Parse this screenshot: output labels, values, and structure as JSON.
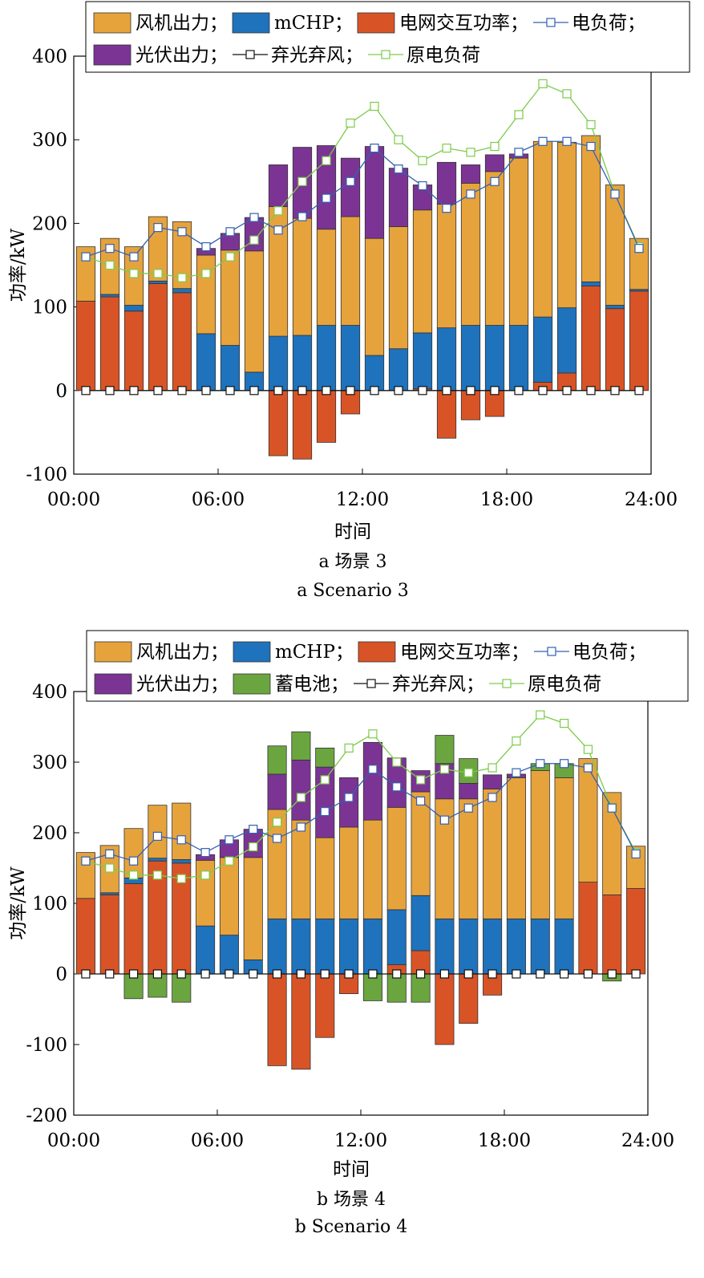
{
  "colors": {
    "wind": "#E6A33C",
    "mchp": "#1F72BC",
    "grid": "#D85426",
    "pv": "#7B3494",
    "battery": "#6BA540",
    "load": "#3460B0",
    "curtail": "#111111",
    "orig_load": "#7CCB4A"
  },
  "chart_data": [
    {
      "type": "bar",
      "stacked": true,
      "panel": "a",
      "xlabel": "时间",
      "ylabel": "功率/kW",
      "ylim": [
        -100,
        400
      ],
      "yticks": [
        -100,
        0,
        100,
        200,
        300,
        400
      ],
      "xlim": [
        0,
        24
      ],
      "xticks": [
        "00:00",
        "06:00",
        "12:00",
        "18:00",
        "24:00"
      ],
      "caption_cn": "a  场景 3",
      "caption_en": "a  Scenario 3",
      "legend_rows": [
        [
          "风机出力；",
          "mCHP；",
          "电网交互功率；",
          "电负荷；"
        ],
        [
          "光伏出力；",
          "弃光弃风；",
          "原电负荷"
        ]
      ],
      "x": [
        0.5,
        1.5,
        2.5,
        3.5,
        4.5,
        5.5,
        6.5,
        7.5,
        8.5,
        9.5,
        10.5,
        11.5,
        12.5,
        13.5,
        14.5,
        15.5,
        16.5,
        17.5,
        18.5,
        19.5,
        20.5,
        21.5,
        22.5,
        23.5
      ],
      "series": [
        {
          "name": "电网交互功率",
          "key": "grid",
          "kind": "bar",
          "values": [
            107,
            112,
            95,
            128,
            117,
            0,
            0,
            0,
            -78,
            -82,
            -62,
            -28,
            0,
            0,
            2,
            -57,
            -35,
            -31,
            0,
            10,
            21,
            125,
            98,
            119
          ]
        },
        {
          "name": "mCHP",
          "key": "mchp",
          "kind": "bar",
          "values": [
            0,
            3,
            7,
            3,
            5,
            68,
            54,
            22,
            65,
            66,
            78,
            78,
            42,
            50,
            67,
            75,
            78,
            78,
            78,
            78,
            78,
            5,
            4,
            2
          ]
        },
        {
          "name": "风机出力",
          "key": "wind",
          "kind": "bar",
          "values": [
            65,
            67,
            70,
            77,
            80,
            94,
            114,
            145,
            155,
            140,
            115,
            130,
            140,
            146,
            147,
            148,
            170,
            184,
            200,
            210,
            198,
            175,
            144,
            61
          ]
        },
        {
          "name": "光伏出力",
          "key": "pv",
          "kind": "bar",
          "values": [
            0,
            0,
            0,
            0,
            0,
            8,
            20,
            40,
            50,
            85,
            100,
            70,
            110,
            70,
            30,
            50,
            22,
            20,
            5,
            0,
            0,
            0,
            0,
            0
          ]
        },
        {
          "name": "电负荷",
          "key": "load",
          "kind": "line",
          "values": [
            160,
            170,
            160,
            195,
            190,
            172,
            190,
            207,
            192,
            208,
            230,
            250,
            290,
            265,
            245,
            218,
            235,
            250,
            285,
            298,
            298,
            292,
            235,
            170
          ]
        },
        {
          "name": "弃光弃风",
          "key": "curtail",
          "kind": "line",
          "values": [
            0,
            0,
            0,
            0,
            0,
            0,
            0,
            0,
            0,
            0,
            0,
            0,
            0,
            0,
            0,
            0,
            0,
            0,
            0,
            0,
            0,
            0,
            0,
            0
          ]
        },
        {
          "name": "原电负荷",
          "key": "orig_load",
          "kind": "line",
          "values": [
            160,
            150,
            140,
            140,
            135,
            140,
            160,
            180,
            215,
            250,
            275,
            320,
            340,
            300,
            275,
            290,
            285,
            292,
            330,
            367,
            355,
            318,
            235,
            172
          ]
        }
      ]
    },
    {
      "type": "bar",
      "stacked": true,
      "panel": "b",
      "xlabel": "时间",
      "ylabel": "功率/kW",
      "ylim": [
        -200,
        400
      ],
      "yticks": [
        -200,
        -100,
        0,
        100,
        200,
        300,
        400
      ],
      "xlim": [
        0,
        24
      ],
      "xticks": [
        "00:00",
        "06:00",
        "12:00",
        "18:00",
        "24:00"
      ],
      "caption_cn": "b  场景 4",
      "caption_en": "b  Scenario 4",
      "legend_rows": [
        [
          "风机出力；",
          "mCHP；",
          "电网交互功率；",
          "电负荷；"
        ],
        [
          "光伏出力；",
          "蓄电池；",
          "弃光弃风；",
          "原电负荷"
        ]
      ],
      "x": [
        0.5,
        1.5,
        2.5,
        3.5,
        4.5,
        5.5,
        6.5,
        7.5,
        8.5,
        9.5,
        10.5,
        11.5,
        12.5,
        13.5,
        14.5,
        15.5,
        16.5,
        17.5,
        18.5,
        19.5,
        20.5,
        21.5,
        22.5,
        23.5
      ],
      "series": [
        {
          "name": "电网交互功率",
          "key": "grid",
          "kind": "bar",
          "values": [
            107,
            112,
            128,
            160,
            157,
            0,
            0,
            0,
            -130,
            -135,
            -90,
            -28,
            0,
            13,
            33,
            -100,
            -70,
            -30,
            0,
            0,
            0,
            130,
            112,
            121
          ]
        },
        {
          "name": "mCHP",
          "key": "mchp",
          "kind": "bar",
          "values": [
            0,
            3,
            8,
            4,
            5,
            68,
            55,
            20,
            78,
            78,
            78,
            78,
            78,
            78,
            78,
            78,
            78,
            78,
            78,
            78,
            78,
            0,
            0,
            0
          ]
        },
        {
          "name": "风机出力",
          "key": "wind",
          "kind": "bar",
          "values": [
            65,
            67,
            70,
            75,
            80,
            93,
            110,
            145,
            155,
            140,
            115,
            130,
            140,
            145,
            147,
            170,
            170,
            184,
            200,
            210,
            200,
            175,
            145,
            60
          ]
        },
        {
          "name": "光伏出力",
          "key": "pv",
          "kind": "bar",
          "values": [
            0,
            0,
            0,
            0,
            0,
            8,
            25,
            40,
            50,
            85,
            100,
            70,
            110,
            70,
            30,
            50,
            22,
            20,
            5,
            0,
            0,
            0,
            0,
            0
          ]
        },
        {
          "name": "蓄电池",
          "key": "battery",
          "kind": "bar",
          "values": [
            0,
            0,
            -35,
            -33,
            -40,
            0,
            0,
            0,
            40,
            40,
            27,
            0,
            -38,
            -40,
            -40,
            40,
            35,
            0,
            0,
            10,
            20,
            0,
            -10,
            0
          ]
        },
        {
          "name": "电负荷",
          "key": "load",
          "kind": "line",
          "values": [
            160,
            170,
            160,
            195,
            190,
            172,
            190,
            205,
            192,
            208,
            230,
            250,
            290,
            265,
            245,
            218,
            235,
            250,
            285,
            298,
            298,
            292,
            235,
            170
          ]
        },
        {
          "name": "弃光弃风",
          "key": "curtail",
          "kind": "line",
          "values": [
            0,
            0,
            0,
            0,
            0,
            0,
            0,
            0,
            0,
            0,
            0,
            0,
            0,
            0,
            0,
            0,
            0,
            0,
            0,
            0,
            0,
            0,
            0,
            0
          ]
        },
        {
          "name": "原电负荷",
          "key": "orig_load",
          "kind": "line",
          "values": [
            160,
            150,
            140,
            140,
            135,
            140,
            160,
            180,
            215,
            250,
            275,
            320,
            340,
            300,
            275,
            290,
            285,
            292,
            330,
            367,
            355,
            318,
            235,
            172
          ]
        }
      ]
    }
  ]
}
